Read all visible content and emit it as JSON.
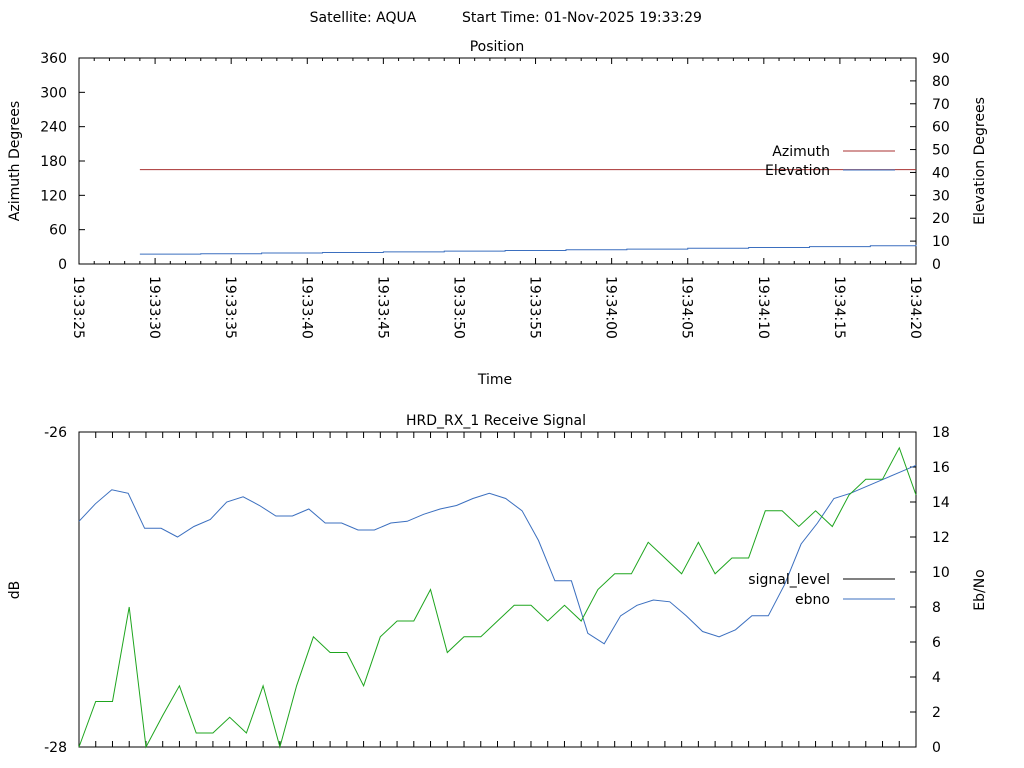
{
  "header": {
    "satellite": "Satellite: AQUA",
    "start_time": "Start Time: 01-Nov-2025 19:33:29"
  },
  "chart_data": [
    {
      "type": "line",
      "title": "Position",
      "xlabel": "Time",
      "ylabel": "Azimuth Degrees",
      "y2label": "Elevation Degrees",
      "x_ticks": [
        "19:33:25",
        "19:33:30",
        "19:33:35",
        "19:33:40",
        "19:33:45",
        "19:33:50",
        "19:33:55",
        "19:34:00",
        "19:34:05",
        "19:34:10",
        "19:34:15",
        "19:34:20"
      ],
      "x_range_seconds": [
        0,
        55
      ],
      "ylim": [
        0,
        360
      ],
      "y_ticks": [
        "0",
        "60",
        "120",
        "180",
        "240",
        "300",
        "360"
      ],
      "y2lim": [
        0,
        90
      ],
      "y2_ticks": [
        "0",
        "10",
        "20",
        "30",
        "40",
        "50",
        "60",
        "70",
        "80",
        "90"
      ],
      "legend_position": "right",
      "series": [
        {
          "name": "Azimuth",
          "axis": "y",
          "color": "#a83232",
          "x": [
            4,
            55
          ],
          "values": [
            165,
            165
          ]
        },
        {
          "name": "Elevation",
          "axis": "y2",
          "color": "#3b6fbf",
          "x": [
            4,
            8,
            12,
            16,
            20,
            24,
            28,
            32,
            36,
            40,
            44,
            48,
            52,
            55
          ],
          "values": [
            4.3,
            4.5,
            4.8,
            5.0,
            5.3,
            5.6,
            5.9,
            6.2,
            6.5,
            6.9,
            7.2,
            7.6,
            8.0,
            8.4
          ]
        }
      ]
    },
    {
      "type": "line",
      "title": "HRD_RX_1 Receive Signal",
      "ylabel": "dB",
      "y2label": "Eb/No",
      "ylim": [
        -28,
        -26
      ],
      "y_ticks": [
        "-28",
        "-26"
      ],
      "y2lim": [
        0,
        18
      ],
      "y2_ticks": [
        "0",
        "2",
        "4",
        "6",
        "8",
        "10",
        "12",
        "14",
        "16",
        "18"
      ],
      "legend_position": "right",
      "series": [
        {
          "name": "signal_level",
          "axis": "y",
          "color": "#000000",
          "x": [],
          "values": []
        },
        {
          "name": "ebno",
          "axis": "y2",
          "color": "#3b6fbf",
          "values": [
            12.9,
            13.9,
            14.7,
            14.5,
            12.5,
            12.5,
            12.0,
            12.6,
            13.0,
            14.0,
            14.3,
            13.8,
            13.2,
            13.2,
            13.6,
            12.8,
            12.8,
            12.4,
            12.4,
            12.8,
            12.9,
            13.3,
            13.6,
            13.8,
            14.2,
            14.5,
            14.2,
            13.5,
            11.8,
            9.5,
            9.5,
            6.5,
            5.9,
            7.5,
            8.1,
            8.4,
            8.3,
            7.5,
            6.6,
            6.3,
            6.7,
            7.5,
            7.5,
            9.3,
            11.6,
            12.8,
            14.2,
            14.5,
            14.9,
            15.3,
            15.7,
            16.1
          ]
        },
        {
          "name": "",
          "axis": "y2",
          "color": "#1ea51e",
          "values": [
            0.0,
            2.6,
            2.6,
            8.0,
            0.0,
            1.8,
            3.5,
            0.8,
            0.8,
            1.7,
            0.8,
            3.5,
            0.0,
            3.5,
            6.3,
            5.4,
            5.4,
            3.5,
            6.3,
            7.2,
            7.2,
            9.0,
            5.4,
            6.3,
            6.3,
            7.2,
            8.1,
            8.1,
            7.2,
            8.1,
            7.2,
            9.0,
            9.9,
            9.9,
            11.7,
            10.8,
            9.9,
            11.7,
            9.9,
            10.8,
            10.8,
            13.5,
            13.5,
            12.6,
            13.5,
            12.6,
            14.4,
            15.3,
            15.3,
            17.1,
            14.4
          ]
        }
      ]
    }
  ]
}
